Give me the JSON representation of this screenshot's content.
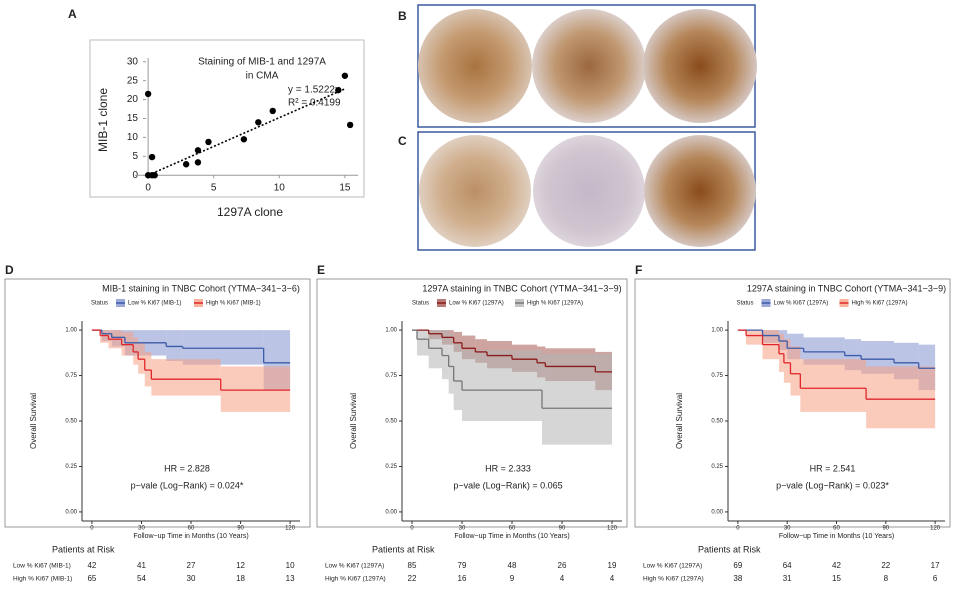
{
  "image_panels": [
    "B",
    "C"
  ],
  "chart_data": [
    {
      "type": "scatter",
      "panel": "A",
      "title": [
        "Staining of MIB-1 and 1297A",
        "in CMA"
      ],
      "x_label": "1297A clone",
      "y_label": "MIB-1 clone",
      "x": [
        0,
        0,
        0.3,
        0.5,
        0.3,
        2.9,
        3.8,
        3.8,
        4.6,
        7.3,
        8.4,
        9.5,
        14.5,
        15,
        15.4
      ],
      "values": [
        21.5,
        0,
        0,
        0,
        4.8,
        2.9,
        6.6,
        3.4,
        8.8,
        9.5,
        14,
        17,
        22.5,
        26.3,
        13.3
      ],
      "color": "#000000",
      "xlim": [
        -1,
        16
      ],
      "ylim": [
        -1,
        31
      ],
      "xticks": [
        0,
        5,
        10,
        15
      ],
      "yticks": [
        0,
        5,
        10,
        15,
        20,
        25,
        30
      ],
      "annotations": [
        "y = 1.5222x",
        "R² = 0.4199"
      ],
      "trend_slope": 1.5222
    },
    {
      "type": "km",
      "panel": "D",
      "title": "MIB-1 staining in TNBC Cohort (YTMA−341−3−6)",
      "legend_title": "Status",
      "x_label": "Follow−up Time in Months (10 Years)",
      "y_label": "Overall Survival",
      "annotations": [
        "HR = 2.828",
        "p−vale (Log−Rank) = 0.024*"
      ],
      "risk_title": "Patients at Risk",
      "xlim": [
        -6,
        126
      ],
      "ylim": [
        -0.05,
        1.05
      ],
      "xticks": [
        0,
        30,
        60,
        90,
        120
      ],
      "yticks": [
        {
          "value": 0,
          "label": "0.00"
        },
        {
          "value": 0.25,
          "label": "0.25"
        },
        {
          "value": 0.5,
          "label": "0.50"
        },
        {
          "value": 0.75,
          "label": "0.75"
        },
        {
          "value": 1,
          "label": "1.00"
        }
      ],
      "series": [
        {
          "name": "Low % Ki67 (MIB-1)",
          "color": "#3c5ba8",
          "band_color": "#8393cf",
          "x": [
            0,
            6,
            12,
            20,
            45,
            55,
            104,
            120
          ],
          "values": [
            1,
            0.98,
            0.96,
            0.93,
            0.91,
            0.9,
            0.82,
            0.82
          ],
          "lower": [
            1,
            0.94,
            0.91,
            0.86,
            0.83,
            0.81,
            0.67,
            0.67
          ],
          "upper": [
            1,
            1,
            1,
            1,
            1,
            1,
            1,
            1
          ],
          "at_risk": [
            42,
            41,
            27,
            12,
            10
          ]
        },
        {
          "name": "High % Ki67 (MIB-1)",
          "color": "#e0262b",
          "band_color": "#f6a083",
          "x": [
            0,
            5,
            10,
            18,
            25,
            28,
            32,
            36,
            78,
            120
          ],
          "values": [
            1,
            0.97,
            0.95,
            0.92,
            0.88,
            0.84,
            0.78,
            0.73,
            0.67,
            0.67
          ],
          "lower": [
            1,
            0.93,
            0.9,
            0.86,
            0.81,
            0.76,
            0.69,
            0.64,
            0.55,
            0.55
          ],
          "upper": [
            1,
            1,
            1,
            0.99,
            0.96,
            0.93,
            0.88,
            0.84,
            0.8,
            0.8
          ],
          "at_risk": [
            65,
            54,
            30,
            18,
            13
          ]
        }
      ]
    },
    {
      "type": "km",
      "panel": "E",
      "title": "1297A staining in TNBC Cohort (YTMA−341−3−9)",
      "legend_title": "Status",
      "x_label": "Follow−up Time in Months (10 Years)",
      "y_label": "Overall Survival",
      "annotations": [
        "HR = 2.333",
        "p−vale (Log−Rank) = 0.065"
      ],
      "risk_title": "Patients at Risk",
      "xlim": [
        -6,
        126
      ],
      "ylim": [
        -0.05,
        1.05
      ],
      "xticks": [
        0,
        30,
        60,
        90,
        120
      ],
      "yticks": [
        {
          "value": 0,
          "label": "0.00"
        },
        {
          "value": 0.25,
          "label": "0.25"
        },
        {
          "value": 0.5,
          "label": "0.50"
        },
        {
          "value": 0.75,
          "label": "0.75"
        },
        {
          "value": 1,
          "label": "1.00"
        }
      ],
      "series": [
        {
          "name": "Low % Ki67 (1297A)",
          "color": "#8b1a1a",
          "band_color": "#a45a52",
          "x": [
            0,
            10,
            18,
            25,
            30,
            38,
            45,
            60,
            75,
            80,
            110,
            120
          ],
          "values": [
            1,
            0.98,
            0.96,
            0.93,
            0.9,
            0.88,
            0.86,
            0.84,
            0.82,
            0.8,
            0.77,
            0.77
          ],
          "lower": [
            1,
            0.95,
            0.92,
            0.88,
            0.84,
            0.82,
            0.79,
            0.77,
            0.74,
            0.72,
            0.67,
            0.67
          ],
          "upper": [
            1,
            1,
            1,
            0.99,
            0.97,
            0.95,
            0.94,
            0.92,
            0.91,
            0.9,
            0.88,
            0.88
          ],
          "at_risk": [
            85,
            79,
            48,
            26,
            19
          ]
        },
        {
          "name": "High % Ki67 (1297A)",
          "color": "#777777",
          "band_color": "#b5b5b5",
          "x": [
            0,
            3,
            10,
            18,
            22,
            25,
            30,
            78,
            120
          ],
          "values": [
            1,
            0.95,
            0.9,
            0.86,
            0.8,
            0.72,
            0.67,
            0.57,
            0.57
          ],
          "lower": [
            1,
            0.86,
            0.79,
            0.73,
            0.65,
            0.56,
            0.5,
            0.37,
            0.37
          ],
          "upper": [
            1,
            1,
            1,
            1,
            0.98,
            0.93,
            0.89,
            0.87,
            0.87
          ],
          "at_risk": [
            22,
            16,
            9,
            4,
            4
          ]
        }
      ]
    },
    {
      "type": "km",
      "panel": "F",
      "title": "1297A staining in TNBC Cohort (YTMA−341−3−9)",
      "legend_title": "Status",
      "x_label": "Follow−up Time in Months (10 Years)",
      "y_label": "Overall Survival",
      "annotations": [
        "HR = 2.541",
        "p−vale (Log−Rank) = 0.023*"
      ],
      "risk_title": "Patients at Risk",
      "xlim": [
        -6,
        126
      ],
      "ylim": [
        -0.05,
        1.05
      ],
      "xticks": [
        0,
        30,
        60,
        90,
        120
      ],
      "yticks": [
        {
          "value": 0,
          "label": "0.00"
        },
        {
          "value": 0.25,
          "label": "0.25"
        },
        {
          "value": 0.5,
          "label": "0.50"
        },
        {
          "value": 0.75,
          "label": "0.75"
        },
        {
          "value": 1,
          "label": "1.00"
        }
      ],
      "series": [
        {
          "name": "Low % Ki67 (1297A)",
          "color": "#3c5ba8",
          "band_color": "#8393cf",
          "x": [
            0,
            15,
            25,
            30,
            40,
            65,
            75,
            95,
            110,
            120
          ],
          "values": [
            1,
            0.97,
            0.94,
            0.9,
            0.88,
            0.86,
            0.84,
            0.82,
            0.79,
            0.79
          ],
          "lower": [
            1,
            0.93,
            0.89,
            0.84,
            0.81,
            0.78,
            0.76,
            0.73,
            0.67,
            0.67
          ],
          "upper": [
            1,
            1,
            1,
            0.98,
            0.96,
            0.95,
            0.94,
            0.93,
            0.92,
            0.92
          ],
          "at_risk": [
            69,
            64,
            42,
            22,
            17
          ]
        },
        {
          "name": "High % Ki67 (1297A)",
          "color": "#e0262b",
          "band_color": "#f6a083",
          "x": [
            0,
            5,
            15,
            25,
            28,
            32,
            38,
            78,
            120
          ],
          "values": [
            1,
            0.97,
            0.92,
            0.87,
            0.82,
            0.76,
            0.68,
            0.62,
            0.62
          ],
          "lower": [
            1,
            0.92,
            0.84,
            0.77,
            0.71,
            0.64,
            0.55,
            0.46,
            0.46
          ],
          "upper": [
            1,
            1,
            1,
            0.98,
            0.95,
            0.91,
            0.84,
            0.8,
            0.8
          ],
          "at_risk": [
            38,
            31,
            15,
            8,
            6
          ]
        }
      ]
    }
  ]
}
